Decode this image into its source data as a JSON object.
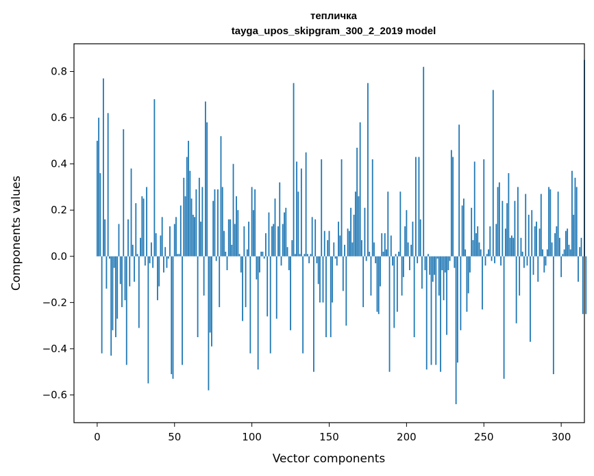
{
  "chart_data": {
    "type": "bar",
    "title": "тепличка",
    "subtitle": "tayga_upos_skipgram_300_2_2019 model",
    "xlabel": "Vector components",
    "ylabel": "Components values",
    "xlim": [
      -15,
      315
    ],
    "ylim": [
      -0.72,
      0.92
    ],
    "xticks": [
      0,
      50,
      100,
      150,
      200,
      250,
      300
    ],
    "xtick_labels": [
      "0",
      "50",
      "100",
      "150",
      "200",
      "250",
      "300"
    ],
    "yticks": [
      -0.6,
      -0.4,
      -0.2,
      0.0,
      0.2,
      0.4,
      0.6,
      0.8
    ],
    "ytick_labels": [
      "−0.6",
      "−0.4",
      "−0.2",
      "0.0",
      "0.2",
      "0.4",
      "0.6",
      "0.8"
    ],
    "grid": false,
    "bar_color": "#1f77b4",
    "values": [
      0.5,
      0.6,
      0.36,
      -0.42,
      0.77,
      0.16,
      -0.14,
      0.62,
      -0.01,
      -0.43,
      -0.32,
      -0.05,
      -0.35,
      -0.27,
      0.14,
      -0.12,
      -0.22,
      0.55,
      -0.19,
      -0.47,
      0.16,
      -0.13,
      0.38,
      0.05,
      -0.11,
      0.23,
      0.01,
      -0.31,
      0.08,
      0.26,
      0.25,
      -0.04,
      0.3,
      -0.55,
      -0.03,
      0.06,
      -0.05,
      0.68,
      0.1,
      -0.19,
      -0.13,
      0.09,
      0.17,
      -0.07,
      0.04,
      -0.05,
      -0.01,
      0.13,
      -0.51,
      -0.53,
      0.14,
      0.17,
      0.01,
      0.01,
      0.22,
      -0.47,
      0.34,
      0.26,
      0.43,
      0.5,
      0.37,
      0.25,
      0.18,
      0.17,
      0.29,
      -0.35,
      0.34,
      0.15,
      0.3,
      -0.17,
      0.67,
      0.58,
      -0.58,
      -0.33,
      -0.39,
      0.24,
      0.29,
      -0.02,
      0.29,
      -0.22,
      0.52,
      0.3,
      0.11,
      0.02,
      -0.06,
      0.16,
      0.16,
      0.05,
      0.4,
      0.14,
      0.26,
      0.2,
      0.01,
      -0.07,
      -0.28,
      0.13,
      -0.22,
      0.03,
      0.15,
      -0.42,
      0.3,
      0.2,
      0.29,
      -0.1,
      -0.49,
      -0.07,
      0.02,
      0.02,
      -0.01,
      0.1,
      -0.26,
      0.19,
      -0.42,
      0.13,
      0.14,
      0.25,
      -0.27,
      0.13,
      0.32,
      -0.04,
      0.14,
      0.19,
      0.21,
      0.04,
      -0.06,
      -0.32,
      0.07,
      0.75,
      0.01,
      0.41,
      0.28,
      0.01,
      0.38,
      -0.42,
      0.01,
      0.45,
      0.01,
      -0.03,
      0.01,
      0.17,
      -0.5,
      0.16,
      -0.03,
      -0.12,
      -0.2,
      0.42,
      -0.2,
      0.11,
      -0.35,
      0.07,
      0.11,
      -0.35,
      -0.2,
      0.06,
      -0.01,
      -0.04,
      0.15,
      0.09,
      0.42,
      -0.15,
      0.05,
      -0.3,
      0.12,
      0.11,
      0.21,
      0.06,
      0.18,
      0.28,
      0.47,
      0.26,
      0.58,
      0.07,
      -0.22,
      0.21,
      -0.02,
      0.75,
      0.02,
      -0.17,
      0.42,
      0.06,
      -0.03,
      -0.24,
      -0.25,
      -0.13,
      0.1,
      0.02,
      0.1,
      0.03,
      0.28,
      -0.5,
      0.09,
      -0.04,
      -0.31,
      0.01,
      -0.24,
      0.02,
      0.28,
      -0.17,
      -0.09,
      0.13,
      0.2,
      0.06,
      -0.06,
      0.05,
      0.15,
      -0.35,
      0.43,
      -0.03,
      0.43,
      0.16,
      -0.14,
      0.82,
      -0.06,
      -0.49,
      0.01,
      -0.08,
      -0.47,
      -0.11,
      -0.08,
      -0.47,
      -0.01,
      -0.17,
      -0.5,
      -0.06,
      -0.19,
      -0.07,
      -0.34,
      -0.06,
      -0.02,
      0.46,
      0.43,
      -0.05,
      -0.64,
      -0.46,
      0.57,
      -0.32,
      0.22,
      0.25,
      0.03,
      -0.24,
      -0.16,
      -0.07,
      0.21,
      0.07,
      0.41,
      0.1,
      0.13,
      0.06,
      0.03,
      -0.23,
      0.42,
      -0.04,
      0.01,
      0.03,
      0.13,
      -0.02,
      0.72,
      -0.03,
      0.14,
      0.3,
      0.32,
      -0.04,
      0.24,
      -0.53,
      0.12,
      0.23,
      0.36,
      0.08,
      0.09,
      0.08,
      0.24,
      -0.29,
      0.3,
      -0.17,
      0.08,
      0.02,
      -0.05,
      0.27,
      -0.04,
      0.18,
      -0.37,
      0.2,
      -0.08,
      0.13,
      0.15,
      -0.11,
      0.12,
      0.27,
      0.03,
      -0.07,
      -0.04,
      0.03,
      0.3,
      0.29,
      0.06,
      -0.51,
      0.1,
      0.13,
      0.28,
      0.08,
      -0.09,
      0.01,
      0.03,
      0.11,
      0.12,
      0.05,
      0.03,
      0.37,
      0.18,
      0.34,
      0.3,
      -0.11,
      0.04,
      0.08,
      -0.25,
      0.85,
      -0.25
    ]
  }
}
